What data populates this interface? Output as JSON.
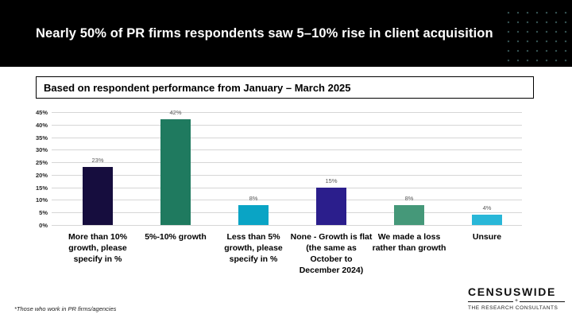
{
  "header": {
    "title": "Nearly 50% of PR firms respondents saw 5–10% rise in client acquisition",
    "background_color": "#000000",
    "text_color": "#ffffff"
  },
  "subtitle_box": {
    "text": "Based on respondent performance from January – March 2025"
  },
  "chart_data": {
    "type": "bar",
    "title": "Based on respondent performance from January – March 2025",
    "categories": [
      "More than 10% growth, please specify in %",
      "5%-10% growth",
      "Less than 5% growth, please specify in %",
      "None - Growth is flat (the same as October to December 2024)",
      "We made a loss rather than growth",
      "Unsure"
    ],
    "values": [
      23,
      42,
      8,
      15,
      8,
      4
    ],
    "value_labels": [
      "23%",
      "42%",
      "8%",
      "15%",
      "8%",
      "4%"
    ],
    "bar_colors": [
      "#160d3e",
      "#1f7a5f",
      "#0aa4c5",
      "#2b1e8c",
      "#459879",
      "#29b7d8"
    ],
    "xlabel": "",
    "ylabel": "",
    "ylim": [
      0,
      45
    ],
    "ytick_step": 5,
    "ytick_labels": [
      "0%",
      "5%",
      "10%",
      "15%",
      "20%",
      "25%",
      "30%",
      "35%",
      "40%",
      "45%"
    ],
    "grid": true,
    "gridline_color": "#d6d6d6",
    "legend": false
  },
  "footnote": "*Those who work in PR firms/agencies",
  "logo": {
    "name": "CENSUSWIDE",
    "plus": "+",
    "tagline": "THE RESEARCH CONSULTANTS"
  }
}
